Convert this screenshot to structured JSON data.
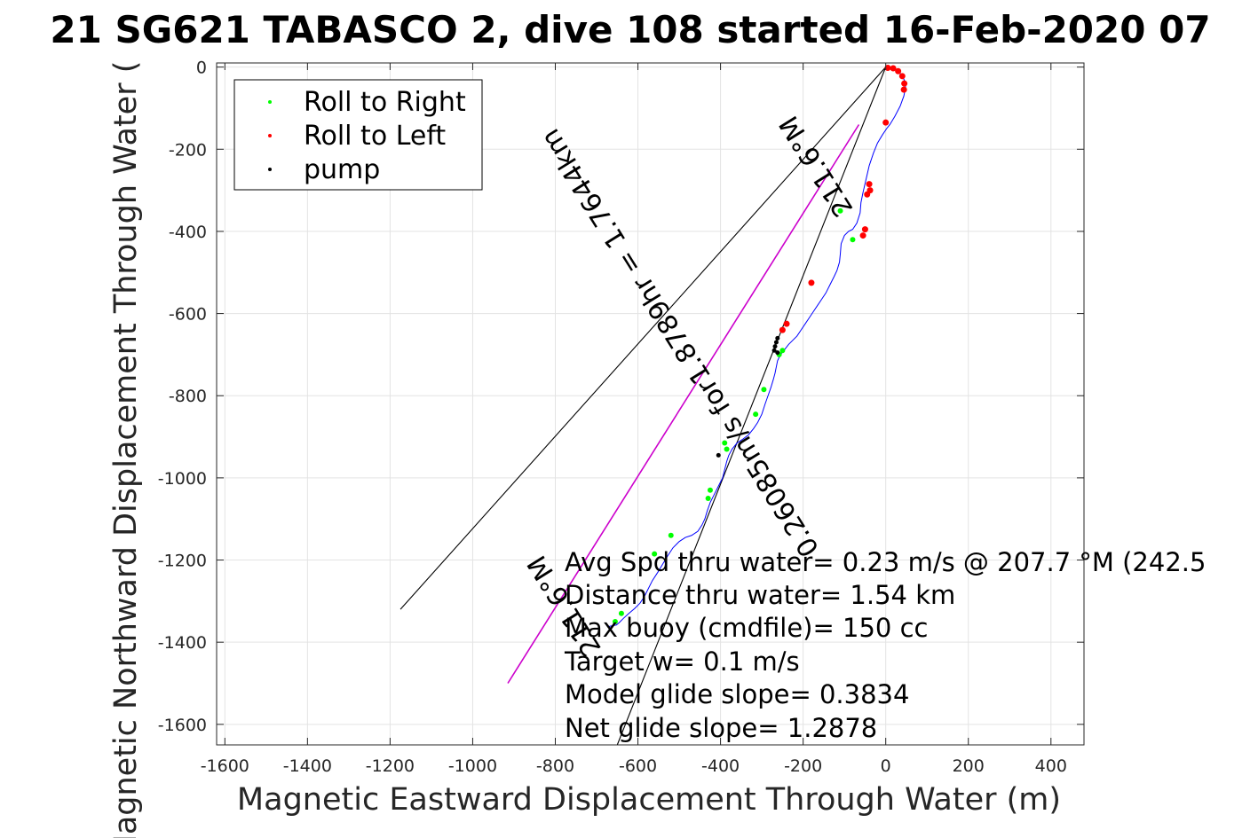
{
  "chart_data": {
    "type": "scatter",
    "title": "21 SG621 TABASCO 2, dive 108 started 16-Feb-2020 07",
    "xlabel": "Magnetic Eastward Displacement Through Water (m)",
    "ylabel": "Magnetic Northward Displacement Through Water (",
    "xlim": [
      -1620,
      480
    ],
    "ylim": [
      -1650,
      10
    ],
    "xticks": [
      -1600,
      -1400,
      -1200,
      -1000,
      -800,
      -600,
      -400,
      -200,
      0,
      200,
      400
    ],
    "yticks": [
      0,
      -200,
      -400,
      -600,
      -800,
      -1000,
      -1200,
      -1400,
      -1600
    ],
    "grid": true,
    "legend_position": "top-left",
    "legend": [
      {
        "label": "Roll to Right",
        "color": "#00ff00"
      },
      {
        "label": "Roll to Left",
        "color": "#ff0000"
      },
      {
        "label": "pump",
        "color": "#000000"
      }
    ],
    "track": {
      "color": "#0000ff",
      "x": [
        0,
        12,
        25,
        38,
        45,
        48,
        44,
        35,
        22,
        10,
        2,
        -8,
        -20,
        -30,
        -40,
        -48,
        -55,
        -60,
        -62,
        -70,
        -80,
        -90,
        -100,
        -108,
        -110,
        -112,
        -118,
        -125,
        -135,
        -145,
        -155,
        -165,
        -175,
        -185,
        -195,
        -205,
        -215,
        -225,
        -235,
        -245,
        -255,
        -262,
        -265,
        -268,
        -272,
        -278,
        -285,
        -292,
        -300,
        -310,
        -320,
        -332,
        -345,
        -360,
        -372,
        -380,
        -385,
        -390,
        -395,
        -405,
        -415,
        -425,
        -432,
        -438,
        -445,
        -455,
        -470,
        -485,
        -500,
        -515,
        -528,
        -540,
        -552,
        -565,
        -575,
        -585,
        -595,
        -608,
        -622,
        -635,
        -645,
        -652,
        -662,
        -672
      ],
      "y": [
        0,
        -2,
        -8,
        -18,
        -32,
        -48,
        -70,
        -95,
        -120,
        -140,
        -150,
        -165,
        -185,
        -210,
        -240,
        -275,
        -305,
        -330,
        -355,
        -380,
        -395,
        -400,
        -410,
        -430,
        -455,
        -475,
        -495,
        -510,
        -530,
        -550,
        -565,
        -580,
        -595,
        -610,
        -625,
        -640,
        -655,
        -665,
        -675,
        -688,
        -700,
        -715,
        -730,
        -745,
        -760,
        -780,
        -800,
        -820,
        -845,
        -865,
        -880,
        -895,
        -905,
        -915,
        -930,
        -945,
        -960,
        -980,
        -1000,
        -1020,
        -1040,
        -1060,
        -1080,
        -1100,
        -1115,
        -1130,
        -1140,
        -1145,
        -1155,
        -1170,
        -1190,
        -1210,
        -1230,
        -1250,
        -1270,
        -1290,
        -1305,
        -1318,
        -1330,
        -1342,
        -1352,
        -1358,
        -1360,
        -1362
      ]
    },
    "roll_right": {
      "color": "#00ff00",
      "x": [
        -110,
        -80,
        -250,
        -258,
        -295,
        -315,
        -390,
        -385,
        -425,
        -430,
        -520,
        -560,
        -640,
        -655
      ],
      "y": [
        -350,
        -420,
        -690,
        -700,
        -785,
        -845,
        -915,
        -930,
        -1030,
        -1050,
        -1140,
        -1185,
        -1330,
        -1350
      ]
    },
    "roll_left": {
      "color": "#ff0000",
      "x": [
        5,
        18,
        30,
        40,
        45,
        44,
        0,
        -40,
        -38,
        -45,
        -50,
        -55,
        -180,
        -240,
        -250
      ],
      "y": [
        -2,
        -3,
        -10,
        -22,
        -40,
        -55,
        -135,
        -285,
        -300,
        -310,
        -395,
        -410,
        -525,
        -625,
        -640
      ]
    },
    "pump": {
      "color": "#000000",
      "x": [
        -262,
        -265,
        -268,
        -270,
        -262,
        -405
      ],
      "y": [
        -660,
        -670,
        -680,
        -690,
        -695,
        -945
      ]
    },
    "lines": [
      {
        "name": "bearing_line_1",
        "color": "#000000",
        "x": [
          0,
          -1175
        ],
        "y": [
          0,
          -1320
        ]
      },
      {
        "name": "bearing_line_2",
        "color": "#000000",
        "x": [
          0,
          -650
        ],
        "y": [
          0,
          -1650
        ]
      },
      {
        "name": "net_displacement",
        "color": "#cc00cc",
        "x": [
          -65,
          -915
        ],
        "y": [
          -140,
          -1500
        ]
      }
    ],
    "rotated_labels": [
      {
        "text": "211.6°M",
        "x": -150,
        "y": -230,
        "angle": 238
      },
      {
        "text": "0.26085m/s for1.8789hr = 1.7644km",
        "x": -480,
        "y": -660,
        "angle": 238
      },
      {
        "text": "211.6°M",
        "x": -760,
        "y": -1300,
        "angle": 238
      }
    ],
    "annotations": [
      "Avg Spd thru water=  0.23 m/s @ 207.7 °M (242.5",
      "Distance thru water=  1.54 km",
      "Max buoy (cmdfile)= 150 cc",
      "Target w= 0.1 m/s",
      "Model glide slope= 0.3834",
      "Net glide slope= 1.2878"
    ]
  }
}
